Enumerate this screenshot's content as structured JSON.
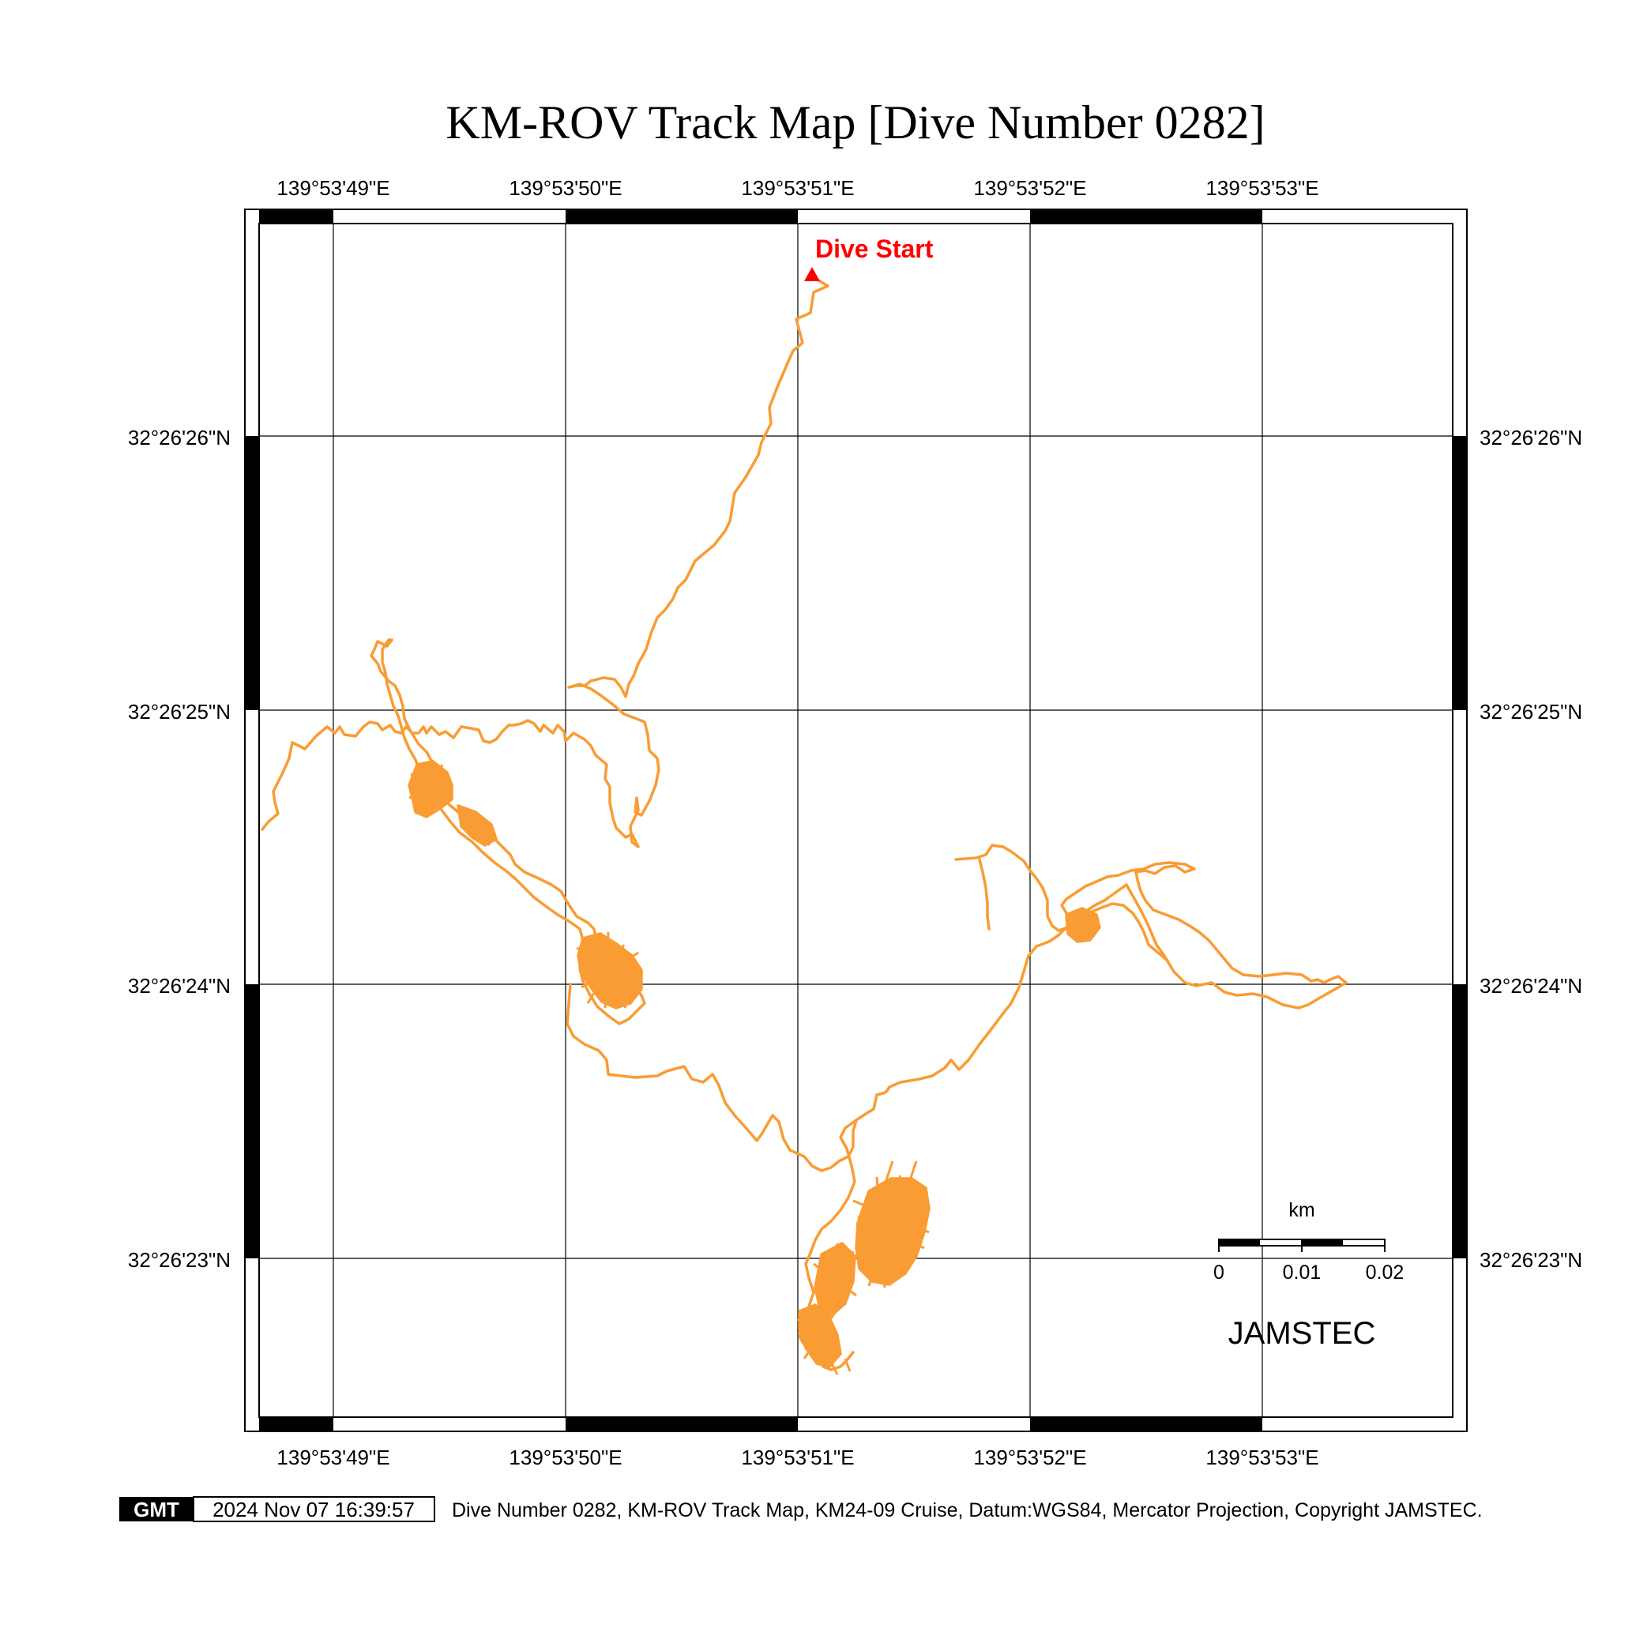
{
  "title": "KM-ROV Track Map [Dive Number 0282]",
  "lon_labels": [
    "139°53'49\"E",
    "139°53'50\"E",
    "139°53'51\"E",
    "139°53'52\"E",
    "139°53'53\"E"
  ],
  "lat_labels": [
    "32°26'26\"N",
    "32°26'25\"N",
    "32°26'24\"N",
    "32°26'23\"N"
  ],
  "dive_start_label": "Dive Start",
  "scale_bar": {
    "unit": "km",
    "ticks": [
      "0",
      "0.01",
      "0.02"
    ]
  },
  "agency": "JAMSTEC",
  "footer": {
    "logo": "GMT",
    "timestamp": "2024 Nov 07 16:39:57",
    "caption": "Dive Number 0282, KM-ROV Track Map, KM24-09 Cruise, Datum:WGS84, Mercator Projection, Copyright JAMSTEC."
  },
  "colors": {
    "track": "#f99c33",
    "start_marker": "#ff0000",
    "frame": "#000000",
    "grid": "#000000"
  },
  "track_description": "ROV dive track (orange) beginning at Dive Start marker near 139°53'51\"E at the north of the map",
  "icons": {
    "start_marker": "triangle-marker-icon",
    "logo": "gmt-logo-icon"
  }
}
